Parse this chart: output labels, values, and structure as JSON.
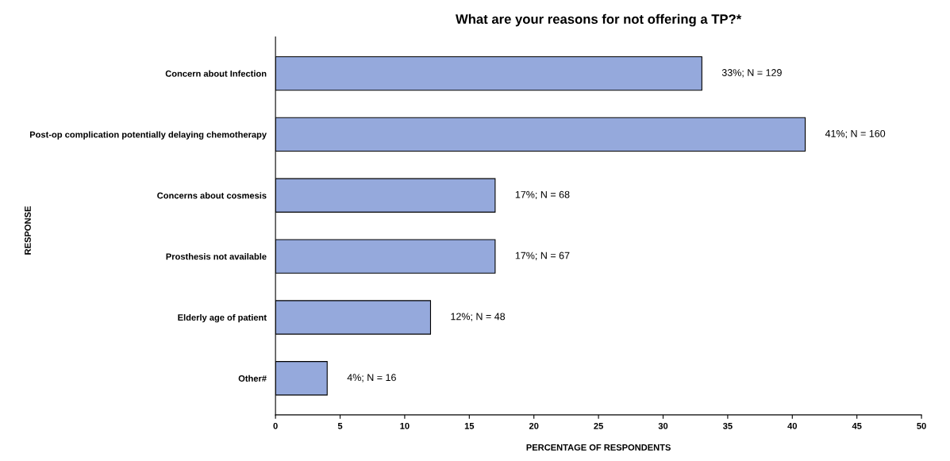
{
  "chart_data": {
    "type": "bar",
    "orientation": "horizontal",
    "title": "What are your reasons for not offering a TP?*",
    "xlabel": "PERCENTAGE OF RESPONDENTS",
    "ylabel": "RESPONSE",
    "categories": [
      "Concern about Infection",
      "Post-op complication potentially delaying chemotherapy",
      "Concerns about cosmesis",
      "Prosthesis not available",
      "Elderly age of patient",
      "Other#"
    ],
    "values": [
      33,
      41,
      17,
      17,
      12,
      4
    ],
    "value_labels": [
      "33%; N = 129",
      "41%; N = 160",
      "17%; N = 68",
      "17%; N = 67",
      "12%; N = 48",
      "4%; N = 16"
    ],
    "color": "#95a9dc",
    "xlim": [
      0,
      50
    ],
    "xticks": [
      0,
      5,
      10,
      15,
      20,
      25,
      30,
      35,
      40,
      45,
      50
    ],
    "grid": false,
    "legend": false
  }
}
